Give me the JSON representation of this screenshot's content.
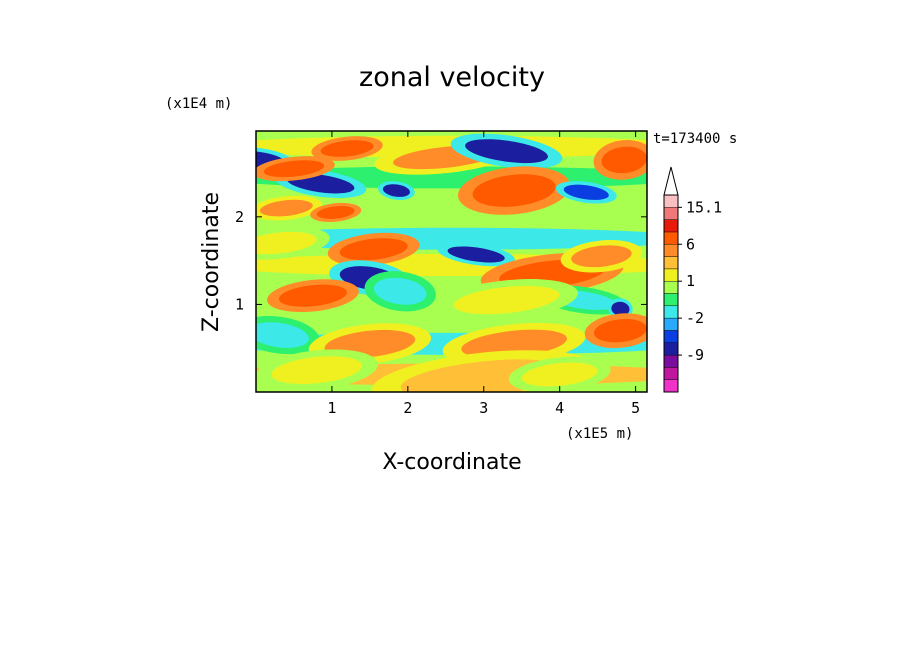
{
  "chart_data": {
    "type": "heatmap",
    "title": "zonal velocity",
    "xlabel": "X-coordinate",
    "ylabel": "Z-coordinate",
    "x_unit": "(x1E5 m)",
    "y_unit": "(x1E4 m)",
    "time_label": "t=173400 s",
    "xlim": [
      0,
      5.15
    ],
    "ylim": [
      0,
      2.98
    ],
    "x_ticks": [
      1,
      2,
      3,
      4,
      5
    ],
    "y_ticks": [
      1,
      2
    ],
    "colorbar": {
      "levels": [
        -15,
        -12,
        -9,
        -6,
        -3,
        -2,
        -1,
        0,
        1,
        2,
        3,
        6,
        9,
        12,
        15.1
      ],
      "labels": [
        "15.1",
        "6",
        "1",
        "-2",
        "-9"
      ],
      "colors": [
        "#f032c8",
        "#c0179e",
        "#7a0d9e",
        "#1c1ea0",
        "#0a3ee0",
        "#2aaaff",
        "#3de8e8",
        "#2cf06e",
        "#a8ff50",
        "#f0f020",
        "#ffc038",
        "#ff8c28",
        "#ff5a00",
        "#e81a0c",
        "#f07878",
        "#f8c0c0"
      ]
    },
    "features": [
      {
        "x": 0.05,
        "z": 2.65,
        "value": -9,
        "rx": 0.35,
        "rz": 0.09
      },
      {
        "x": 0.85,
        "z": 2.38,
        "value": -9,
        "rx": 0.45,
        "rz": 0.1
      },
      {
        "x": 0.5,
        "z": 2.55,
        "value": 6,
        "rx": 0.4,
        "rz": 0.09
      },
      {
        "x": 1.2,
        "z": 2.78,
        "value": 6,
        "rx": 0.35,
        "rz": 0.09
      },
      {
        "x": 1.85,
        "z": 2.3,
        "value": -9,
        "rx": 0.18,
        "rz": 0.07
      },
      {
        "x": 2.5,
        "z": 2.68,
        "value": 3,
        "rx": 0.7,
        "rz": 0.12
      },
      {
        "x": 3.3,
        "z": 2.75,
        "value": -9,
        "rx": 0.55,
        "rz": 0.12
      },
      {
        "x": 3.4,
        "z": 2.3,
        "value": 6,
        "rx": 0.55,
        "rz": 0.18
      },
      {
        "x": 4.35,
        "z": 2.28,
        "value": -6,
        "rx": 0.3,
        "rz": 0.08
      },
      {
        "x": 4.85,
        "z": 2.65,
        "value": 6,
        "rx": 0.3,
        "rz": 0.15
      },
      {
        "x": 0.4,
        "z": 2.1,
        "value": 3,
        "rx": 0.35,
        "rz": 0.09
      },
      {
        "x": 1.05,
        "z": 2.05,
        "value": 6,
        "rx": 0.25,
        "rz": 0.07
      },
      {
        "x": 0.3,
        "z": 1.7,
        "value": 1,
        "rx": 0.5,
        "rz": 0.12
      },
      {
        "x": 1.55,
        "z": 1.63,
        "value": 6,
        "rx": 0.45,
        "rz": 0.12
      },
      {
        "x": 2.9,
        "z": 1.57,
        "value": -9,
        "rx": 0.38,
        "rz": 0.08
      },
      {
        "x": 1.5,
        "z": 1.3,
        "value": -9,
        "rx": 0.4,
        "rz": 0.13
      },
      {
        "x": 1.9,
        "z": 1.15,
        "value": -2,
        "rx": 0.35,
        "rz": 0.15
      },
      {
        "x": 0.75,
        "z": 1.1,
        "value": 6,
        "rx": 0.45,
        "rz": 0.12
      },
      {
        "x": 3.9,
        "z": 1.35,
        "value": 6,
        "rx": 0.7,
        "rz": 0.15
      },
      {
        "x": 4.55,
        "z": 1.55,
        "value": 3,
        "rx": 0.4,
        "rz": 0.12
      },
      {
        "x": 4.3,
        "z": 1.05,
        "value": -2,
        "rx": 0.45,
        "rz": 0.1
      },
      {
        "x": 4.8,
        "z": 0.95,
        "value": -9,
        "rx": 0.12,
        "rz": 0.08
      },
      {
        "x": 3.3,
        "z": 1.05,
        "value": 1,
        "rx": 0.7,
        "rz": 0.15
      },
      {
        "x": 0.3,
        "z": 0.65,
        "value": -2,
        "rx": 0.4,
        "rz": 0.14
      },
      {
        "x": 1.5,
        "z": 0.55,
        "value": 3,
        "rx": 0.6,
        "rz": 0.15
      },
      {
        "x": 3.4,
        "z": 0.55,
        "value": 3,
        "rx": 0.7,
        "rz": 0.15
      },
      {
        "x": 4.8,
        "z": 0.7,
        "value": 6,
        "rx": 0.35,
        "rz": 0.13
      },
      {
        "x": 0.8,
        "z": 0.25,
        "value": 1,
        "rx": 0.6,
        "rz": 0.15
      },
      {
        "x": 3.0,
        "z": 0.15,
        "value": 2,
        "rx": 1.1,
        "rz": 0.2
      },
      {
        "x": 4.0,
        "z": 0.2,
        "value": 1,
        "rx": 0.5,
        "rz": 0.13
      }
    ]
  }
}
